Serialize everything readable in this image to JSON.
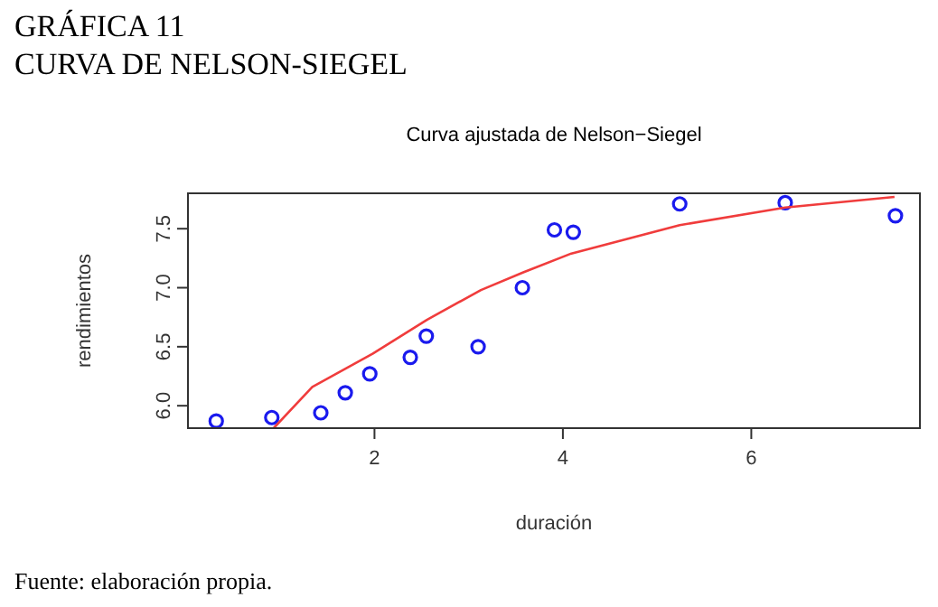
{
  "chart_data": {
    "type": "scatter",
    "title": "GRÁFICA 11\nCURVA DE NELSON-SIEGEL",
    "subtitle": "Curva ajustada de Nelson−Siegel",
    "xlabel": "duración",
    "ylabel": "rendimientos",
    "annotations": [
      "Fuente: elaboración propia."
    ],
    "xlim": [
      0.02,
      7.79
    ],
    "ylim": [
      5.81,
      7.8
    ],
    "xticks": [
      2,
      4,
      6
    ],
    "yticks": [
      {
        "value": 6,
        "label": "6.0"
      },
      {
        "value": 6.5,
        "label": "6.5"
      },
      {
        "value": 7,
        "label": "7.0"
      },
      {
        "value": 7.5,
        "label": "7.5"
      }
    ],
    "grid": false,
    "series": [
      {
        "color": "#1a1aee",
        "marker": "circle",
        "x": [
          0.32,
          0.91,
          1.43,
          1.69,
          1.95,
          2.38,
          2.55,
          3.1,
          3.57,
          3.91,
          4.11,
          5.24,
          6.36,
          7.53
        ],
        "values": [
          5.87,
          5.9,
          5.94,
          6.11,
          6.27,
          6.41,
          6.59,
          6.5,
          7.0,
          7.49,
          7.47,
          7.71,
          7.72,
          7.61
        ]
      },
      {
        "type": "line",
        "color": "#f03c3c",
        "line_style": "solid",
        "x": [
          0.93,
          1.34,
          1.98,
          2.56,
          3.13,
          3.58,
          4.09,
          5.24,
          6.36,
          7.52
        ],
        "values": [
          5.81,
          6.16,
          6.44,
          6.73,
          6.98,
          7.13,
          7.29,
          7.53,
          7.68,
          7.77
        ]
      }
    ]
  }
}
